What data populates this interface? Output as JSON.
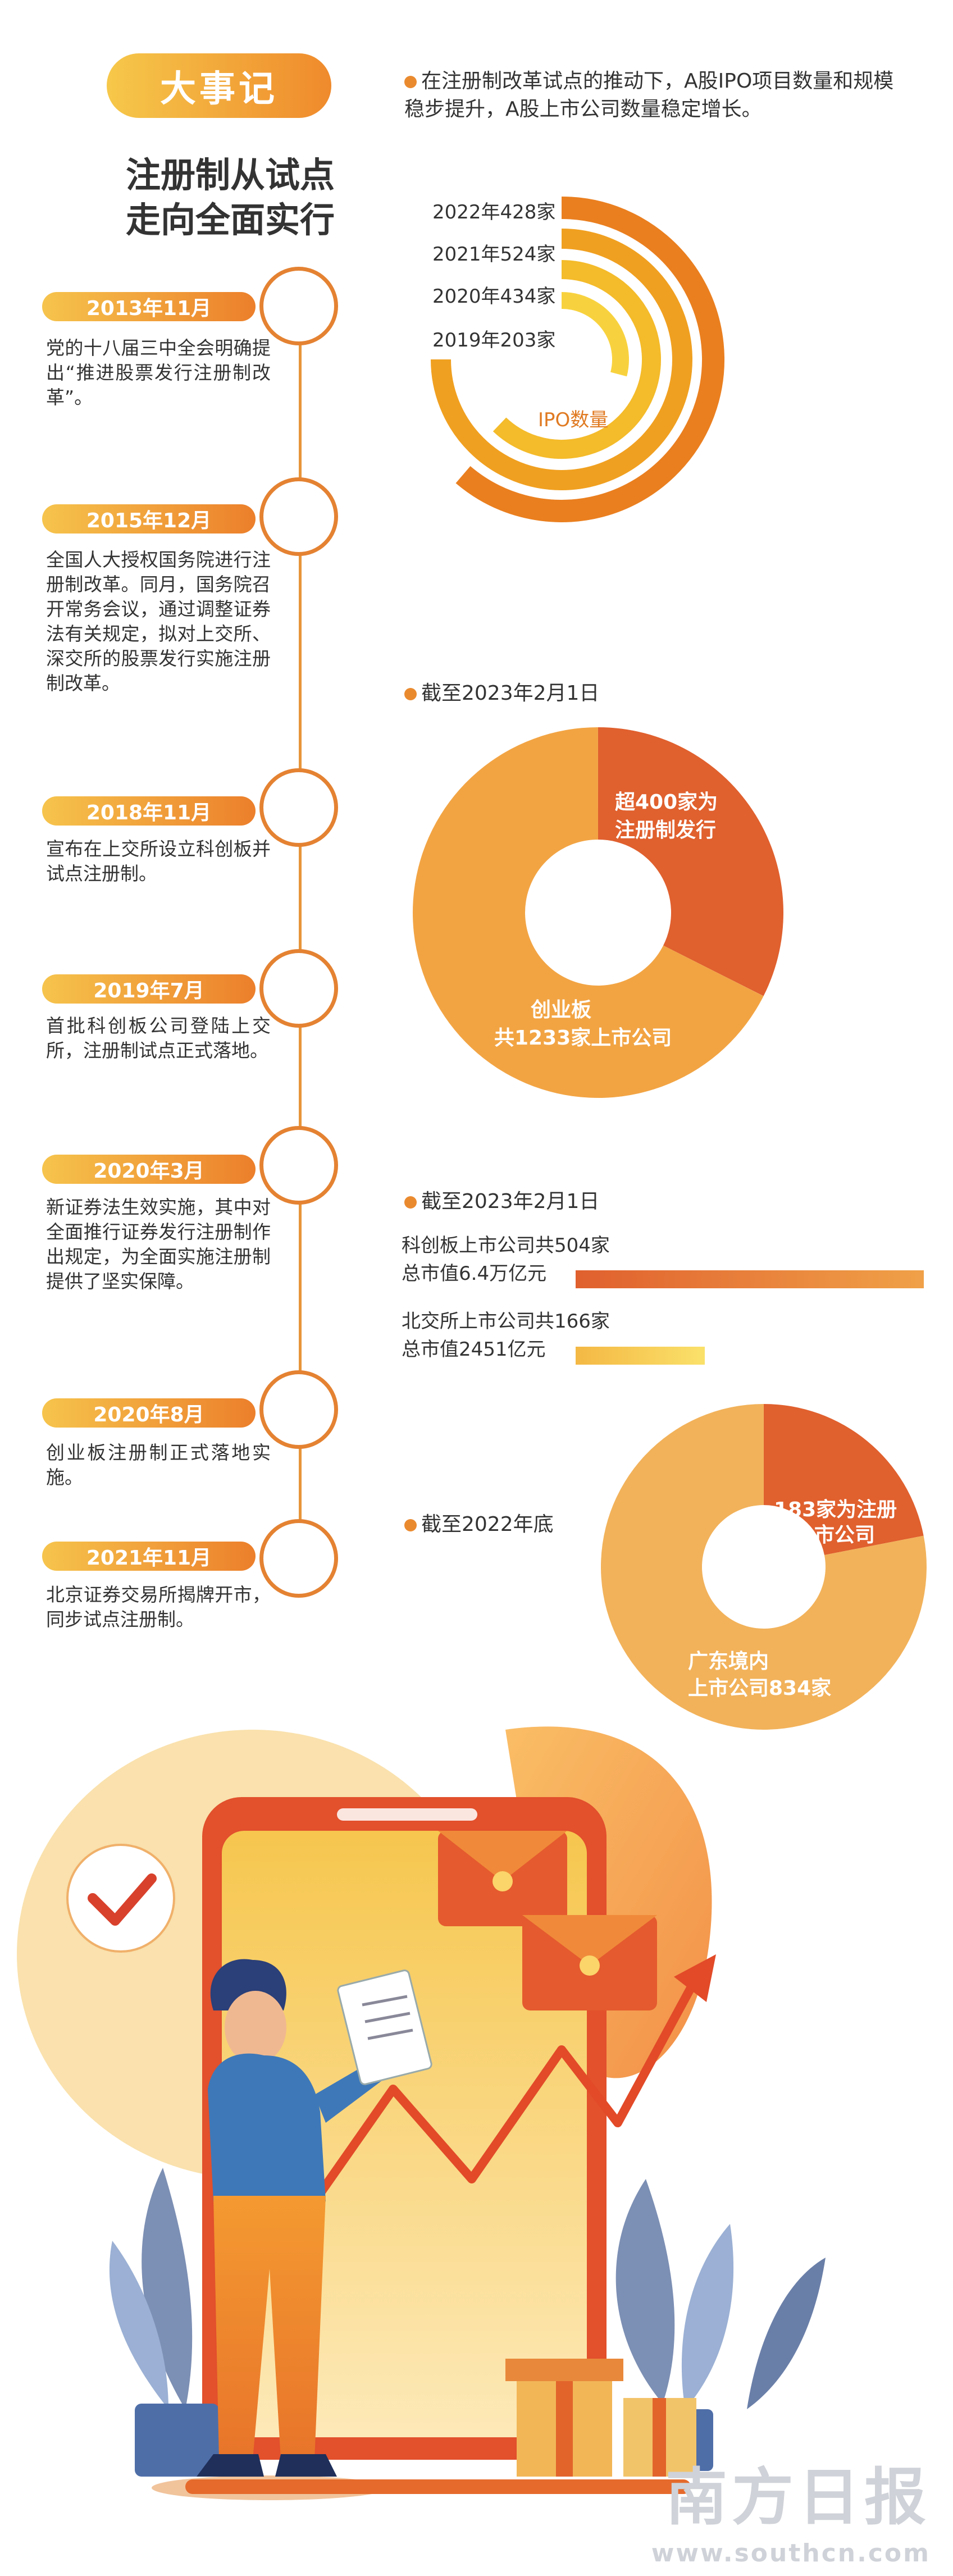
{
  "header": {
    "badge": "大事记",
    "subtitle_line1": "注册制从试点",
    "subtitle_line2": "走向全面实行"
  },
  "timeline": [
    {
      "date": "2013年11月",
      "text": "党的十八届三中全会明确提出“推进股票发行注册制改革”。"
    },
    {
      "date": "2015年12月",
      "text": "全国人大授权国务院进行注册制改革。同月，国务院召开常务会议，通过调整证券法有关规定，拟对上交所、深交所的股票发行实施注册制改革。"
    },
    {
      "date": "2018年11月",
      "text": "宣布在上交所设立科创板并试点注册制。"
    },
    {
      "date": "2019年7月",
      "text": "首批科创板公司登陆上交所，注册制试点正式落地。"
    },
    {
      "date": "2020年3月",
      "text": "新证券法生效实施，其中对全面推行证券发行注册制作出规定，为全面实施注册制提供了坚实保障。"
    },
    {
      "date": "2020年8月",
      "text": "创业板注册制正式落地实施。"
    },
    {
      "date": "2021年11月",
      "text": "北京证券交易所揭牌开市，同步试点注册制。"
    }
  ],
  "notes": {
    "ipo_note": "在注册制改革试点的推动下，A股IPO项目数量和规模稳步提升，A股上市公司数量稳定增长。",
    "cutoff_1": "截至2023年2月1日",
    "cutoff_2": "截至2023年2月1日",
    "cutoff_3": "截至2022年底"
  },
  "chart_data": [
    {
      "type": "bar",
      "title": "IPO数量",
      "categories": [
        "2022年",
        "2021年",
        "2020年",
        "2019年"
      ],
      "values": [
        428,
        524,
        434,
        203
      ],
      "labels": [
        "2022年428家",
        "2021年524家",
        "2020年434家",
        "2019年203家"
      ],
      "unit": "家",
      "colors": [
        "#ea7f1f",
        "#f0a020",
        "#f4bb2a",
        "#f8d23e"
      ]
    },
    {
      "type": "pie",
      "slices": [
        {
          "label_line1": "超400家为",
          "label_line2": "注册制发行",
          "value": 400,
          "color": "#e0602e"
        },
        {
          "label_line1": "创业板",
          "label_line2": "共1233家上市公司",
          "value": 833,
          "color": "#f2a443"
        }
      ],
      "total": 1233
    },
    {
      "type": "bar",
      "bars": [
        {
          "label_line1": "科创板上市公司共504家",
          "label_line2": "总市值6.4万亿元",
          "count": 504,
          "value": 6.4,
          "unit": "万亿元"
        },
        {
          "label_line1": "北交所上市公司共166家",
          "label_line2": "总市值2451亿元",
          "count": 166,
          "value": 0.2451,
          "unit": "万亿元"
        }
      ],
      "colors": [
        "#e0602e",
        "#f8d860"
      ]
    },
    {
      "type": "pie",
      "slices": [
        {
          "label_line1": "183家为注册",
          "label_line2": "制上市公司",
          "value": 183,
          "color": "#e0602e"
        },
        {
          "label_line1": "广东境内",
          "label_line2": "上市公司834家",
          "value": 651,
          "color": "#f2b25a"
        }
      ],
      "total": 834
    }
  ],
  "branding": {
    "logo": "南方日报",
    "url": "www.southcn.com"
  },
  "icons": [
    "check-icon",
    "document-icon",
    "envelope-icon",
    "trend-arrow-icon",
    "gift-box-icon",
    "plant-icon"
  ]
}
